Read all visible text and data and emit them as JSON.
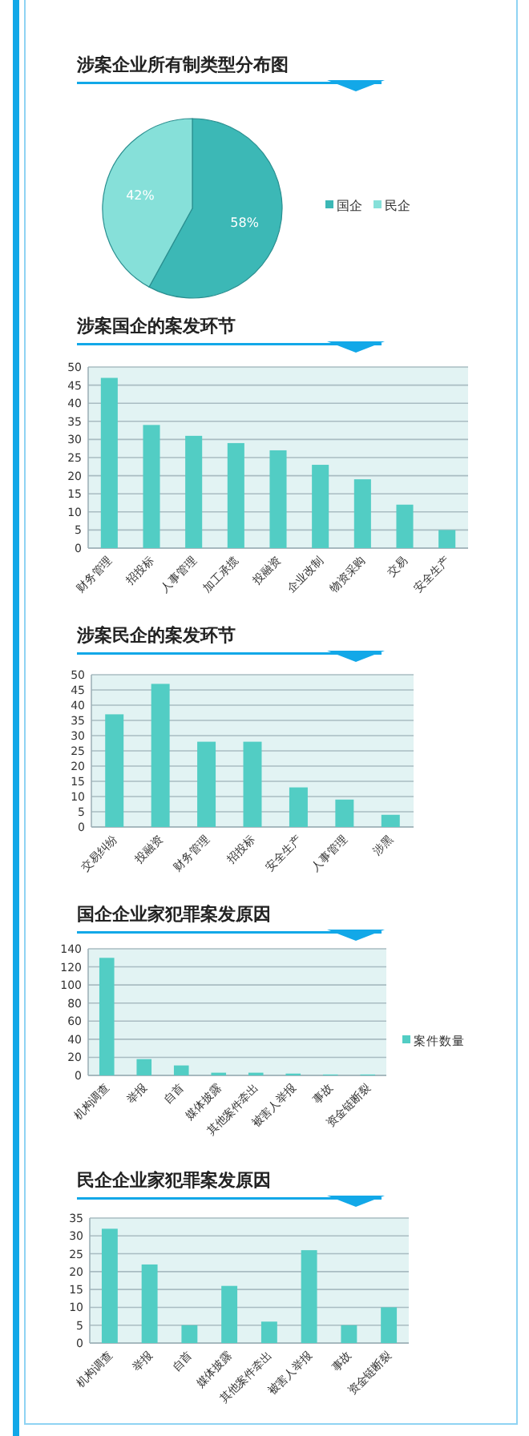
{
  "chart_data": [
    {
      "type": "pie",
      "title": "涉案企业所有制类型分布图",
      "categories": [
        "国企",
        "民企"
      ],
      "values": [
        58,
        42
      ],
      "colors": [
        "#3cb8b6",
        "#86e0d9"
      ],
      "value_labels": [
        "58%",
        "42%"
      ],
      "legend": "right"
    },
    {
      "type": "bar",
      "title": "涉案国企的案发环节",
      "categories": [
        "财务管理",
        "招投标",
        "人事管理",
        "加工承揽",
        "投融资",
        "企业改制",
        "物资采购",
        "交易",
        "安全生产"
      ],
      "series": [
        {
          "color": "#52cdc4",
          "values": [
            47,
            34,
            31,
            29,
            27,
            23,
            19,
            12,
            5
          ]
        }
      ],
      "ylim": [
        0,
        50
      ],
      "yticks": [
        0,
        5,
        10,
        15,
        20,
        25,
        30,
        35,
        40,
        45,
        50
      ],
      "grid": "y"
    },
    {
      "type": "bar",
      "title": "涉案民企的案发环节",
      "categories": [
        "交易纠纷",
        "投融资",
        "财务管理",
        "招投标",
        "安全生产",
        "人事管理",
        "涉黑"
      ],
      "series": [
        {
          "color": "#52cdc4",
          "values": [
            37,
            47,
            28,
            28,
            13,
            9,
            4
          ]
        }
      ],
      "ylim": [
        0,
        50
      ],
      "yticks": [
        0,
        5,
        10,
        15,
        20,
        25,
        30,
        35,
        40,
        45,
        50
      ],
      "grid": "y"
    },
    {
      "type": "bar",
      "title": "国企企业家犯罪案发原因",
      "categories": [
        "机构调查",
        "举报",
        "自首",
        "媒体披露",
        "其他案件牵出",
        "被害人举报",
        "事故",
        "资金链断裂"
      ],
      "series": [
        {
          "name": "案件数量",
          "color": "#52cdc4",
          "values": [
            130,
            18,
            11,
            3,
            3,
            2,
            1,
            1
          ]
        }
      ],
      "ylim": [
        0,
        140
      ],
      "yticks": [
        0,
        20,
        40,
        60,
        80,
        100,
        120,
        140
      ],
      "grid": "y",
      "legend": "right"
    },
    {
      "type": "bar",
      "title": "民企企业家犯罪案发原因",
      "categories": [
        "机构调查",
        "举报",
        "自首",
        "媒体披露",
        "其他案件牵出",
        "被害人举报",
        "事故",
        "资金链断裂"
      ],
      "series": [
        {
          "color": "#52cdc4",
          "values": [
            32,
            22,
            5,
            16,
            6,
            26,
            5,
            10
          ]
        }
      ],
      "ylim": [
        0,
        35
      ],
      "yticks": [
        0,
        5,
        10,
        15,
        20,
        25,
        30,
        35
      ],
      "grid": "y"
    }
  ]
}
